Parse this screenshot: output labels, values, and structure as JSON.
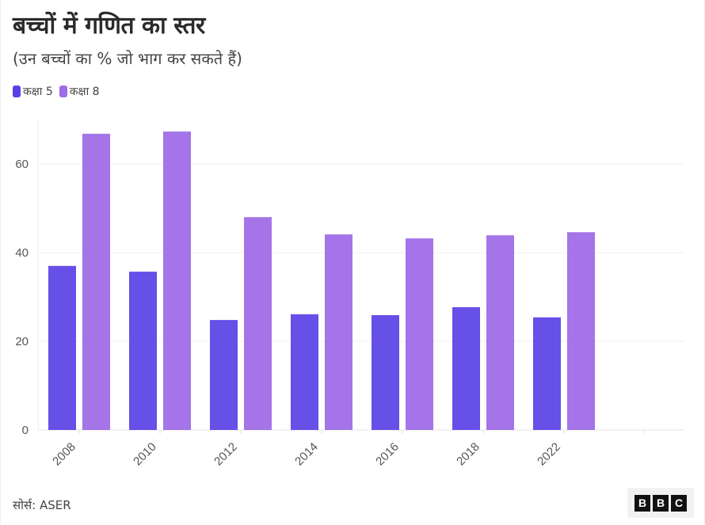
{
  "header": {
    "title": "बच्चों में गणित का स्तर",
    "subtitle": "(उन बच्चों का % जो भाग कर सकते हैं)"
  },
  "legend": [
    {
      "label": "कक्षा 5",
      "color": "#6650e8"
    },
    {
      "label": "कक्षा 8",
      "color": "#a574e8"
    }
  ],
  "footer": {
    "source": "सोर्स: ASER",
    "logo_letters": [
      "B",
      "B",
      "C"
    ]
  },
  "chart_data": {
    "type": "bar",
    "title": "बच्चों में गणित का स्तर",
    "subtitle": "(उन बच्चों का % जो भाग कर सकते हैं)",
    "xlabel": "",
    "ylabel": "",
    "categories": [
      "2008",
      "2010",
      "2012",
      "2014",
      "2016",
      "2018",
      "2022"
    ],
    "series": [
      {
        "name": "कक्षा 5",
        "color": "#6650e8",
        "values": [
          37.0,
          35.7,
          24.8,
          26.1,
          25.9,
          27.7,
          25.4
        ]
      },
      {
        "name": "कक्षा 8",
        "color": "#a574e8",
        "values": [
          66.8,
          67.3,
          48.0,
          44.1,
          43.2,
          43.9,
          44.6
        ]
      }
    ],
    "yticks": [
      0,
      20,
      40,
      60
    ],
    "ylim": [
      0,
      70
    ],
    "grid": true,
    "legend_position": "top-left",
    "source": "ASER"
  }
}
